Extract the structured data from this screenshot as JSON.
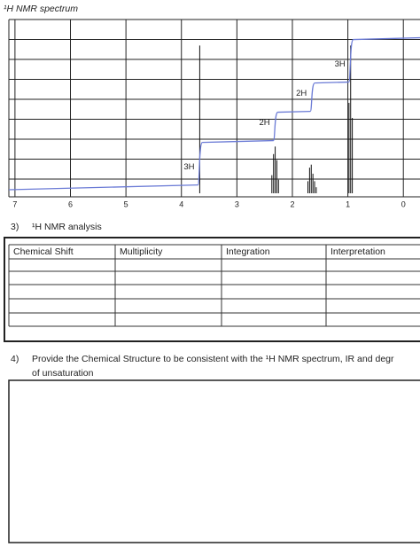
{
  "title": "¹H NMR spectrum",
  "spectrum": {
    "xlim": [
      7.11,
      -0.3
    ],
    "xticks": [
      7,
      6,
      5,
      4,
      3,
      2,
      1,
      0
    ],
    "peaks": [
      {
        "shifts": [
          3.67
        ],
        "heights": [
          98
        ],
        "integration": 3,
        "label": "3H"
      },
      {
        "shifts": [
          2.37,
          2.34,
          2.31,
          2.28,
          2.25
        ],
        "heights": [
          12,
          26,
          31,
          22,
          9
        ],
        "integration": 2,
        "label": "2H"
      },
      {
        "shifts": [
          1.72,
          1.69,
          1.66,
          1.63,
          1.6,
          1.57
        ],
        "heights": [
          8,
          17,
          19,
          13,
          8,
          4
        ],
        "integration": 2,
        "label": "2H"
      },
      {
        "shifts": [
          0.98,
          0.95,
          0.92
        ],
        "heights": [
          60,
          98,
          50
        ],
        "integration": 3,
        "label": "3H"
      }
    ]
  },
  "section3": {
    "number": "3)",
    "heading": "¹H NMR analysis",
    "table": {
      "headers": [
        "Chemical Shift",
        "Multiplicity",
        "Integration",
        "Interpretation"
      ]
    }
  },
  "section4": {
    "number": "4)",
    "line1": "Provide the Chemical Structure to be consistent with the ¹H NMR spectrum, IR and degr",
    "line2": "of unsaturation"
  }
}
